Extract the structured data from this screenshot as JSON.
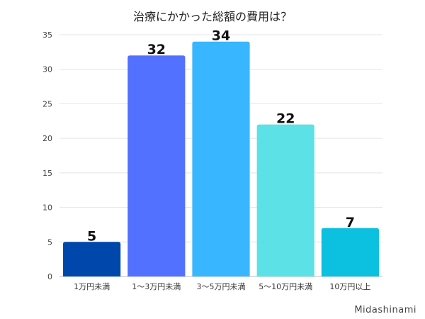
{
  "chart_data": {
    "type": "bar",
    "title": "治療にかかった総額の費用は？",
    "categories": [
      "1万円未満",
      "1〜3万円未満",
      "3〜5万円未満",
      "5〜10万円未満",
      "10万円以上"
    ],
    "values": [
      5,
      32,
      34,
      22,
      7
    ],
    "colors": [
      "#0047ab",
      "#5271ff",
      "#38b6ff",
      "#5ce1e6",
      "#0cc0df"
    ],
    "ylim": [
      0,
      35
    ],
    "yticks": [
      0,
      5,
      10,
      15,
      20,
      25,
      30,
      35
    ],
    "grid": true,
    "data_labels": true,
    "xlabel": "",
    "ylabel": ""
  },
  "credit": "Midashinami"
}
